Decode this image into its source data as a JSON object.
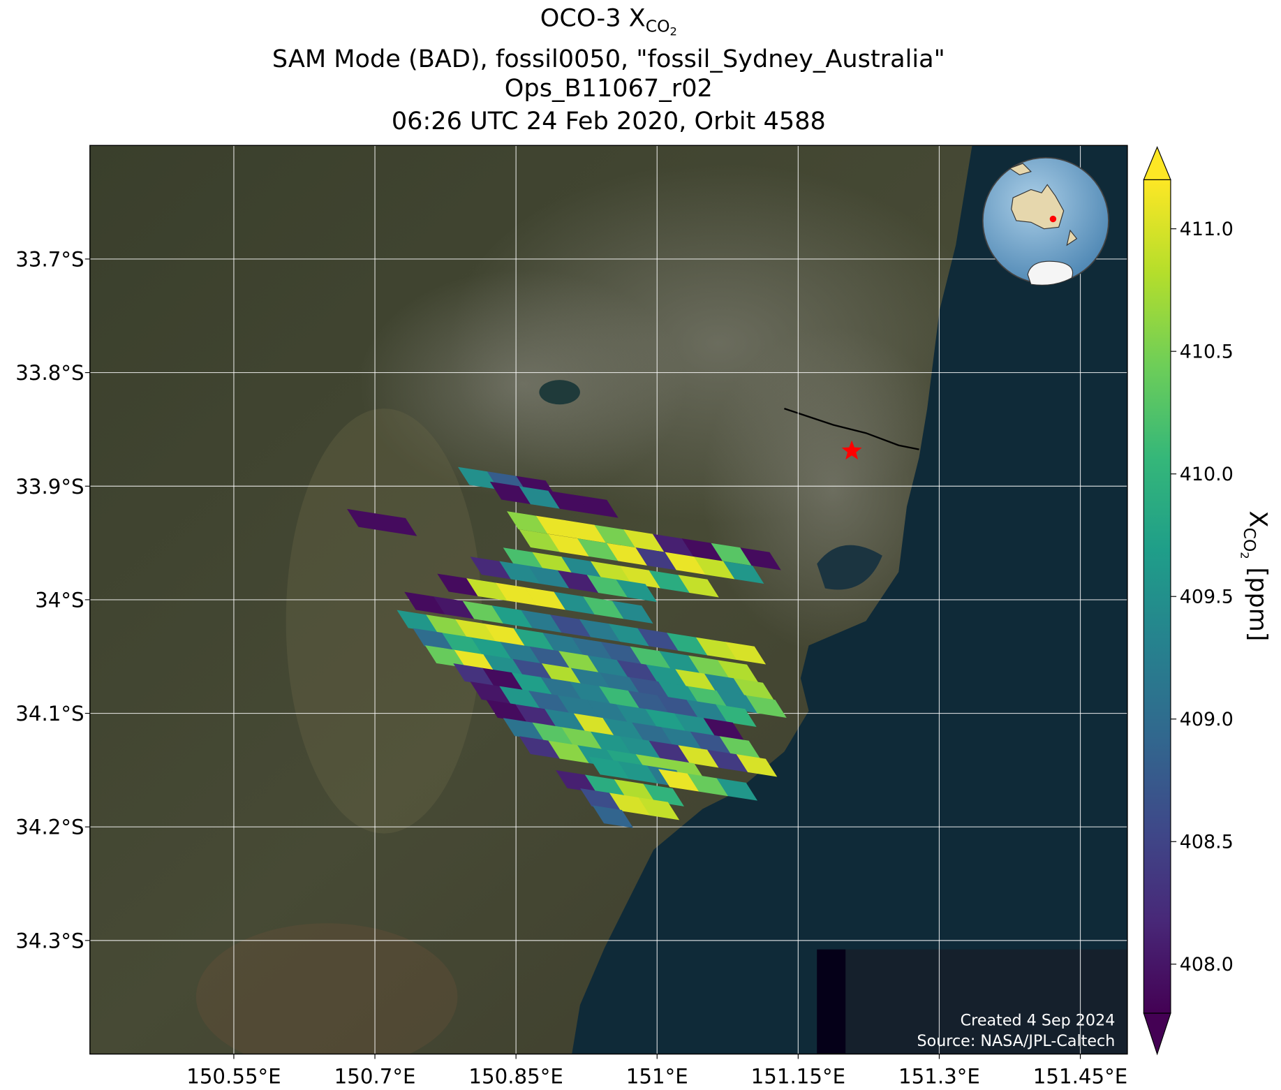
{
  "chart_data": {
    "type": "map",
    "title": {
      "line1": {
        "text": "OCO-3 X",
        "sub": "CO",
        "subsub": "2"
      },
      "line2": "SAM Mode (BAD), fossil0050, \"fossil_Sydney_Australia\"",
      "line3": "Ops_B11067_r02",
      "line4": "06:26 UTC 24 Feb 2020, Orbit 4588"
    },
    "xlim": [
      150.397,
      151.5
    ],
    "ylim": [
      -34.4,
      -33.6
    ],
    "xticks": [
      {
        "value": 150.55,
        "label": "150.55°E"
      },
      {
        "value": 150.7,
        "label": "150.7°E"
      },
      {
        "value": 150.85,
        "label": "150.85°E"
      },
      {
        "value": 151,
        "label": "151°E"
      },
      {
        "value": 151.15,
        "label": "151.15°E"
      },
      {
        "value": 151.3,
        "label": "151.3°E"
      },
      {
        "value": 151.45,
        "label": "151.45°E"
      }
    ],
    "yticks": [
      {
        "value": -33.7,
        "label": "33.7°S"
      },
      {
        "value": -33.8,
        "label": "33.8°S"
      },
      {
        "value": -33.9,
        "label": "33.9°S"
      },
      {
        "value": -34,
        "label": "34°S"
      },
      {
        "value": -34.1,
        "label": "34.1°S"
      },
      {
        "value": -34.2,
        "label": "34.2°S"
      },
      {
        "value": -34.3,
        "label": "34.3°S"
      }
    ],
    "grid": true,
    "grid_color": "#ffffff",
    "swath_rows": [
      {
        "lon": [
          150.81,
          150.841,
          150.872
        ],
        "lat": [
          -33.893,
          -33.897,
          -33.901
        ],
        "xco2": [
          409.5,
          408.8,
          407.9
        ]
      },
      {
        "lon": [
          150.844,
          150.875,
          150.906,
          150.937
        ],
        "lat": [
          -33.906,
          -33.91,
          -33.914,
          -33.918
        ],
        "xco2": [
          407.9,
          409.4,
          407.9,
          407.9
        ]
      },
      {
        "lon": [
          150.692,
          150.723
        ],
        "lat": [
          -33.93,
          -33.934
        ],
        "xco2": [
          407.9,
          407.9
        ]
      },
      {
        "lon": [
          150.862,
          150.893,
          150.924,
          150.955,
          150.986,
          151.017,
          151.048,
          151.079,
          151.11
        ],
        "lat": [
          -33.932,
          -33.936,
          -33.94,
          -33.944,
          -33.948,
          -33.952,
          -33.956,
          -33.96,
          -33.964
        ],
        "xco2": [
          410.6,
          411.1,
          411.1,
          410.5,
          411.0,
          408.1,
          407.9,
          410.3,
          407.9
        ]
      },
      {
        "lon": [
          150.875,
          150.906,
          150.937,
          150.968,
          150.999,
          151.03,
          151.061,
          151.092
        ],
        "lat": [
          -33.948,
          -33.952,
          -33.956,
          -33.96,
          -33.964,
          -33.968,
          -33.972,
          -33.976
        ],
        "xco2": [
          410.7,
          411.1,
          410.4,
          411.1,
          408.4,
          411.1,
          410.9,
          409.6
        ]
      },
      {
        "lon": [
          150.858,
          150.889,
          150.92,
          150.951,
          150.982,
          151.013,
          151.044
        ],
        "lat": [
          -33.964,
          -33.968,
          -33.972,
          -33.976,
          -33.98,
          -33.984,
          -33.988
        ],
        "xco2": [
          410.2,
          410.8,
          409.4,
          410.9,
          411.0,
          409.9,
          410.9
        ]
      },
      {
        "lon": [
          150.823,
          150.854,
          150.885,
          150.916,
          150.947,
          150.978
        ],
        "lat": [
          -33.972,
          -33.976,
          -33.98,
          -33.984,
          -33.988,
          -33.992
        ],
        "xco2": [
          408.2,
          409.4,
          409.3,
          408.1,
          410.2,
          409.6
        ]
      },
      {
        "lon": [
          150.788,
          150.819,
          150.85,
          150.881,
          150.912,
          150.943,
          150.974
        ],
        "lat": [
          -33.987,
          -33.991,
          -33.995,
          -33.999,
          -34.003,
          -34.007,
          -34.011
        ],
        "xco2": [
          407.9,
          410.9,
          411.1,
          411.1,
          409.5,
          410.2,
          409.4
        ]
      },
      {
        "lon": [
          150.753,
          150.784,
          150.815,
          150.846,
          150.877,
          150.908,
          150.939,
          150.97,
          151.001,
          151.032,
          151.063,
          151.094
        ],
        "lat": [
          -34.003,
          -34.007,
          -34.011,
          -34.015,
          -34.019,
          -34.023,
          -34.027,
          -34.031,
          -34.035,
          -34.039,
          -34.043,
          -34.047
        ],
        "xco2": [
          407.9,
          408.0,
          410.4,
          409.7,
          409.2,
          408.6,
          409.2,
          409.5,
          408.6,
          409.9,
          410.9,
          411.0
        ]
      },
      {
        "lon": [
          150.745,
          150.776,
          150.807,
          150.838,
          150.869,
          150.9,
          150.931,
          150.962,
          150.993,
          151.024,
          151.055,
          151.086
        ],
        "lat": [
          -34.019,
          -34.023,
          -34.027,
          -34.031,
          -34.035,
          -34.039,
          -34.043,
          -34.047,
          -34.051,
          -34.055,
          -34.059,
          -34.063
        ],
        "xco2": [
          409.6,
          410.6,
          411.0,
          411.1,
          409.8,
          409.2,
          409.0,
          408.8,
          410.2,
          409.6,
          410.5,
          410.8
        ]
      },
      {
        "lon": [
          150.762,
          150.793,
          150.824,
          150.855,
          150.886,
          150.917,
          150.948,
          150.979,
          151.01,
          151.041,
          151.072,
          151.103
        ],
        "lat": [
          -34.035,
          -34.039,
          -34.043,
          -34.047,
          -34.051,
          -34.055,
          -34.059,
          -34.063,
          -34.067,
          -34.071,
          -34.075,
          -34.079
        ],
        "xco2": [
          409.0,
          409.9,
          409.7,
          409.2,
          408.8,
          410.6,
          409.3,
          408.5,
          409.6,
          410.9,
          409.4,
          410.7
        ]
      },
      {
        "lon": [
          150.775,
          150.806,
          150.837,
          150.868,
          150.899,
          150.93,
          150.961,
          150.992,
          151.023,
          151.054,
          151.085,
          151.116
        ],
        "lat": [
          -34.05,
          -34.054,
          -34.058,
          -34.062,
          -34.066,
          -34.07,
          -34.074,
          -34.078,
          -34.082,
          -34.086,
          -34.09,
          -34.094
        ],
        "xco2": [
          410.4,
          411.1,
          409.5,
          408.6,
          410.8,
          409.2,
          409.1,
          408.7,
          409.6,
          410.2,
          409.4,
          410.4
        ]
      },
      {
        "lon": [
          150.805,
          150.836,
          150.867,
          150.898,
          150.929,
          150.96,
          150.991,
          151.022,
          151.053,
          151.084
        ],
        "lat": [
          -34.066,
          -34.07,
          -34.074,
          -34.078,
          -34.082,
          -34.086,
          -34.09,
          -34.094,
          -34.098,
          -34.102
        ],
        "xco2": [
          408.3,
          407.9,
          409.7,
          409.1,
          409.3,
          410.1,
          408.8,
          408.7,
          409.3,
          410.0
        ]
      },
      {
        "lon": [
          150.823,
          150.854,
          150.885,
          150.916,
          150.947,
          150.978,
          151.009,
          151.04,
          151.071
        ],
        "lat": [
          -34.082,
          -34.086,
          -34.09,
          -34.094,
          -34.098,
          -34.102,
          -34.106,
          -34.11,
          -34.114
        ],
        "xco2": [
          408.0,
          409.6,
          408.9,
          409.2,
          409.2,
          409.4,
          409.7,
          409.5,
          407.9
        ]
      },
      {
        "lon": [
          150.84,
          150.871,
          150.902,
          150.933,
          150.964,
          150.995,
          151.026,
          151.057,
          151.088
        ],
        "lat": [
          -34.098,
          -34.102,
          -34.106,
          -34.11,
          -34.114,
          -34.118,
          -34.122,
          -34.126,
          -34.13
        ],
        "xco2": [
          407.9,
          408.2,
          409.3,
          411.0,
          409.4,
          409.0,
          409.2,
          408.7,
          410.4
        ]
      },
      {
        "lon": [
          150.858,
          150.889,
          150.92,
          150.951,
          150.982,
          151.013,
          151.044,
          151.075,
          151.106
        ],
        "lat": [
          -34.114,
          -34.118,
          -34.122,
          -34.126,
          -34.13,
          -34.134,
          -34.138,
          -34.142,
          -34.146
        ],
        "xco2": [
          409.1,
          410.3,
          410.5,
          409.6,
          409.5,
          408.3,
          411.0,
          408.4,
          411.0
        ]
      },
      {
        "lon": [
          150.875,
          150.906,
          150.937,
          150.968,
          150.999,
          151.03
        ],
        "lat": [
          -34.13,
          -34.134,
          -34.138,
          -34.142,
          -34.146,
          -34.15
        ],
        "xco2": [
          408.3,
          410.6,
          409.6,
          409.8,
          410.6,
          410.6
        ]
      },
      {
        "lon": [
          150.949,
          150.98,
          151.011
        ],
        "lat": [
          -34.148,
          -34.152,
          -34.156
        ],
        "xco2": [
          409.7,
          409.6,
          409.2
        ]
      },
      {
        "lon": [
          151.023,
          151.054,
          151.085
        ],
        "lat": [
          -34.159,
          -34.163,
          -34.167
        ],
        "xco2": [
          411.1,
          410.4,
          409.6
        ]
      },
      {
        "lon": [
          150.914,
          150.945,
          150.976,
          151.007
        ],
        "lat": [
          -34.16,
          -34.164,
          -34.168,
          -34.172
        ],
        "xco2": [
          408.1,
          409.9,
          410.8,
          410.0
        ]
      },
      {
        "lon": [
          150.94,
          150.971,
          151.002
        ],
        "lat": [
          -34.176,
          -34.18,
          -34.184
        ],
        "xco2": [
          408.6,
          411.0,
          410.9
        ]
      },
      {
        "lon": [
          150.953
        ],
        "lat": [
          -34.191
        ],
        "xco2": [
          408.9
        ]
      }
    ],
    "target": {
      "lon": 151.207,
      "lat": -33.869,
      "color": "#ff0000"
    },
    "colorbar": {
      "lim": [
        407.8,
        411.2
      ],
      "ticks": [
        {
          "value": 408,
          "label": "408.0"
        },
        {
          "value": 408.5,
          "label": "408.5"
        },
        {
          "value": 409,
          "label": "409.0"
        },
        {
          "value": 409.5,
          "label": "409.5"
        },
        {
          "value": 410,
          "label": "410.0"
        },
        {
          "value": 410.5,
          "label": "410.5"
        },
        {
          "value": 411,
          "label": "411.0"
        }
      ],
      "colormap": [
        "#440154",
        "#482878",
        "#3e4989",
        "#31688e",
        "#26828e",
        "#1f9e89",
        "#35b779",
        "#6ece58",
        "#b5de2b",
        "#fde725"
      ],
      "label": {
        "symbol": "X",
        "sub": "CO",
        "subsub": "2",
        "units": "[ppm]"
      }
    },
    "footer": {
      "created": "Created 4 Sep 2024",
      "source": "Source: NASA/JPL-Caltech"
    }
  }
}
